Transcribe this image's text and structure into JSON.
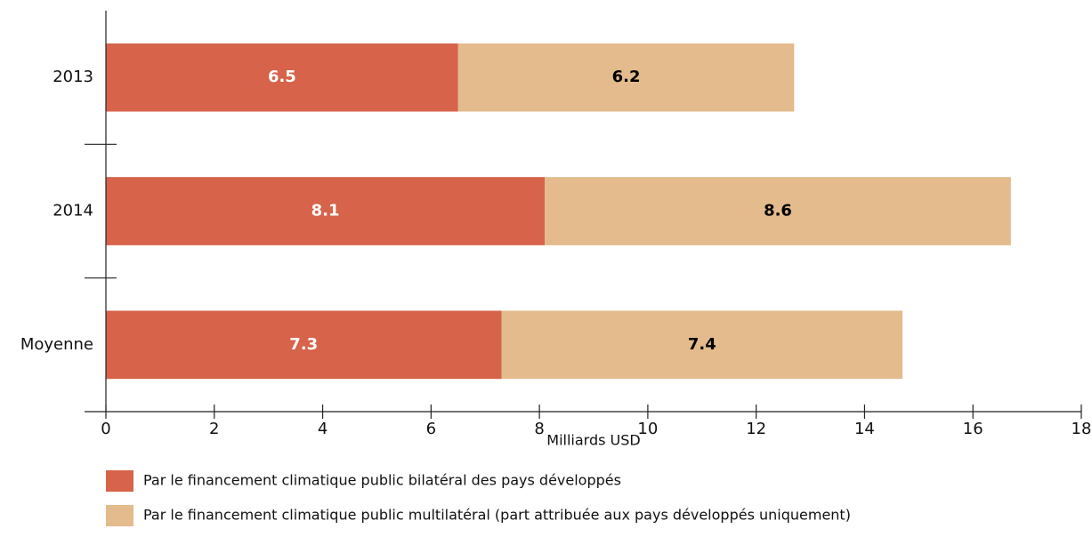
{
  "chart_data": {
    "type": "stacked-barh",
    "categories": [
      "2013",
      "2014",
      "Moyenne"
    ],
    "series": [
      {
        "name": "Par le financement climatique public bilatéral des pays développés",
        "color": "#d6634a",
        "values": [
          6.5,
          8.1,
          7.3
        ]
      },
      {
        "name": "Par le financement climatique public multilatéral (part attribuée aux pays développés uniquement)",
        "color": "#e3bb8c",
        "values": [
          6.2,
          8.6,
          7.4
        ]
      }
    ],
    "xlabel": "Milliards USD",
    "xlim": [
      0,
      18
    ],
    "xticks": [
      0,
      2,
      4,
      6,
      8,
      10,
      12,
      14,
      16,
      18
    ]
  }
}
